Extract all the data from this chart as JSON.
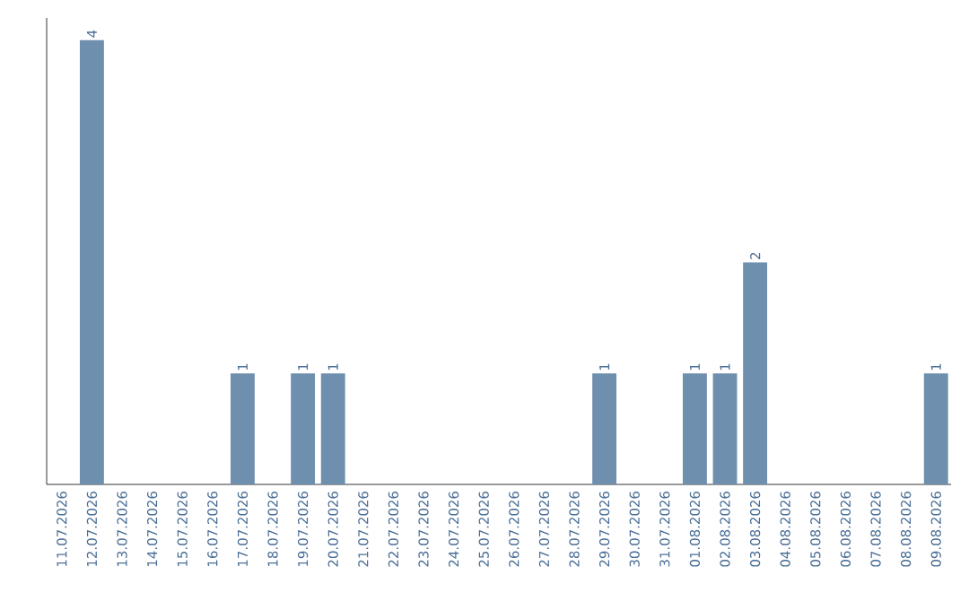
{
  "chart_data": {
    "type": "bar",
    "categories": [
      "11.07.2026",
      "12.07.2026",
      "13.07.2026",
      "14.07.2026",
      "15.07.2026",
      "16.07.2026",
      "17.07.2026",
      "18.07.2026",
      "19.07.2026",
      "20.07.2026",
      "21.07.2026",
      "22.07.2026",
      "23.07.2026",
      "24.07.2026",
      "25.07.2026",
      "26.07.2026",
      "27.07.2026",
      "28.07.2026",
      "29.07.2026",
      "30.07.2026",
      "31.07.2026",
      "01.08.2026",
      "02.08.2026",
      "03.08.2026",
      "04.08.2026",
      "05.08.2026",
      "06.08.2026",
      "07.08.2026",
      "08.08.2026",
      "09.08.2026"
    ],
    "values": [
      0,
      4,
      0,
      0,
      0,
      0,
      1,
      0,
      1,
      1,
      0,
      0,
      0,
      0,
      0,
      0,
      0,
      0,
      1,
      0,
      0,
      1,
      1,
      2,
      0,
      0,
      0,
      0,
      0,
      1
    ],
    "value_labels": [
      null,
      "4",
      null,
      null,
      null,
      null,
      "1",
      null,
      "1",
      "1",
      null,
      null,
      null,
      null,
      null,
      null,
      null,
      null,
      "1",
      null,
      null,
      "1",
      "1",
      "2",
      null,
      null,
      null,
      null,
      null,
      "1"
    ],
    "color": "#6f8fae",
    "ylim": [
      0,
      4.2
    ],
    "tick_labels": "x"
  }
}
